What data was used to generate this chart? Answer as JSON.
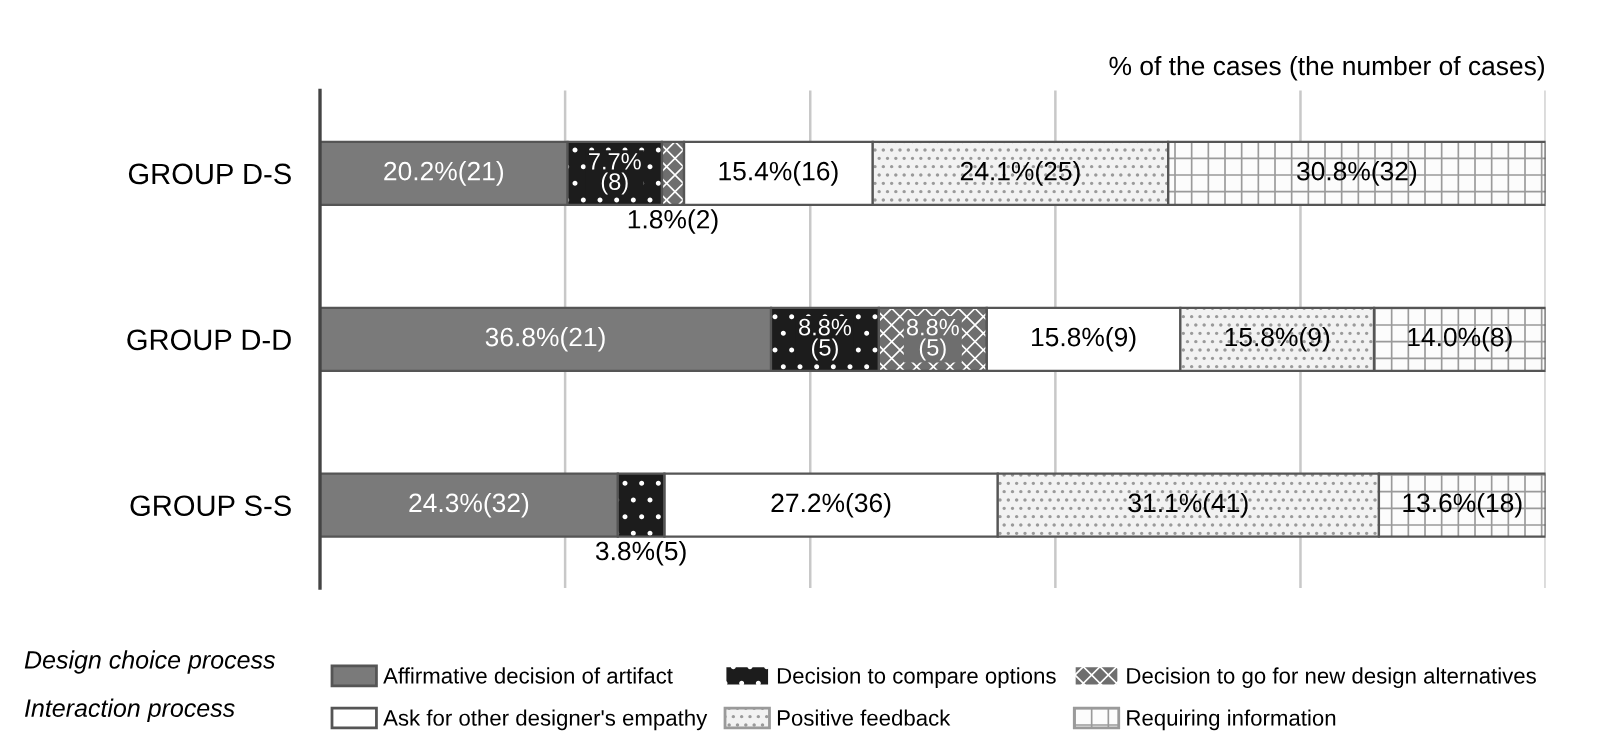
{
  "chart_data": {
    "type": "bar",
    "orientation": "horizontal",
    "stacked": true,
    "subtitle": "% of the cases (the number of cases)",
    "categories": [
      "GROUP D-S",
      "GROUP D-D",
      "GROUP S-S"
    ],
    "series": [
      {
        "name": "Affirmative decision of artifact",
        "color": "#7a7a7a",
        "values": [
          20.2,
          36.8,
          24.3
        ],
        "value_labels": [
          "20.2%(21)",
          "36.8%(21)",
          "24.3%(32)"
        ]
      },
      {
        "name": "Decision to compare options",
        "color": "#1c1c1c",
        "values": [
          7.7,
          8.8,
          3.8
        ],
        "value_labels": [
          "7.7%(8)",
          "8.8%(5)",
          "3.8%(5)"
        ]
      },
      {
        "name": "Decision to go for new design alternatives",
        "color": "#6e6e6e",
        "values": [
          1.8,
          8.8,
          null
        ],
        "value_labels": [
          "1.8%(2)",
          "8.8%(5)",
          null
        ]
      },
      {
        "name": "Ask for other designer's empathy",
        "color": "#ffffff",
        "values": [
          15.4,
          15.8,
          27.2
        ],
        "value_labels": [
          "15.4%(16)",
          "15.8%(9)",
          "27.2%(36)"
        ]
      },
      {
        "name": "Positive feedback",
        "color": "#f2f2f2",
        "values": [
          24.1,
          15.8,
          31.1
        ],
        "value_labels": [
          "24.1%(25)",
          "15.8%(9)",
          "31.1%(41)"
        ]
      },
      {
        "name": "Requiring information",
        "color": "#fcfcfc",
        "values": [
          30.8,
          14.0,
          13.6
        ],
        "value_labels": [
          "30.8%(32)",
          "14.0%(8)",
          "13.6%(18)"
        ]
      }
    ],
    "xlim": [
      0,
      100
    ],
    "xticks": [
      {
        "value": 0,
        "label": null
      },
      {
        "value": 20,
        "label": null
      },
      {
        "value": 40,
        "label": null
      },
      {
        "value": 60,
        "label": null
      },
      {
        "value": 80,
        "label": null
      },
      {
        "value": 100,
        "label": null
      }
    ],
    "grid": "x",
    "tick_labels": "y",
    "legend": "bottom",
    "annotations": [
      "Design choice process",
      "Interaction process"
    ]
  }
}
